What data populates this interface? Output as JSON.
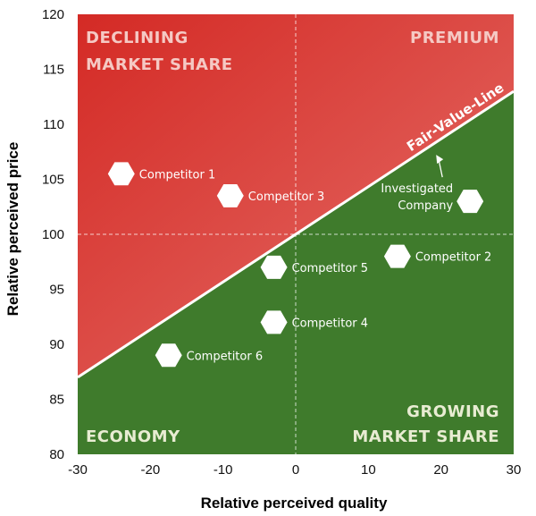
{
  "chart_data": {
    "type": "scatter",
    "xlabel": "Relative perceived quality",
    "ylabel": "Relative perceived price",
    "xlim": [
      -30,
      30
    ],
    "ylim": [
      80,
      120
    ],
    "xticks": [
      -30,
      -20,
      -10,
      0,
      10,
      20,
      30
    ],
    "yticks": [
      80,
      85,
      90,
      95,
      100,
      105,
      110,
      115,
      120
    ],
    "reference_lines": {
      "x": 0,
      "y": 100,
      "style": "dashed"
    },
    "fair_value_line": {
      "label": "Fair-Value-Line",
      "from": [
        -30,
        87
      ],
      "to": [
        30,
        113
      ]
    },
    "quadrants": {
      "top_left": [
        "DECLINING",
        "MARKET SHARE"
      ],
      "top_right": [
        "PREMIUM"
      ],
      "bottom_left": [
        "ECONOMY"
      ],
      "bottom_right": [
        "GROWING",
        "MARKET SHARE"
      ]
    },
    "points": [
      {
        "label": "Competitor 1",
        "x": -24,
        "y": 105.5
      },
      {
        "label": "Competitor 3",
        "x": -9,
        "y": 103.5
      },
      {
        "label": "Investigated Company",
        "label_lines": [
          "Investigated",
          "Company"
        ],
        "x": 24,
        "y": 103
      },
      {
        "label": "Competitor 2",
        "x": 14,
        "y": 98
      },
      {
        "label": "Competitor 5",
        "x": -3,
        "y": 97
      },
      {
        "label": "Competitor 4",
        "x": -3,
        "y": 92
      },
      {
        "label": "Competitor 6",
        "x": -17.5,
        "y": 89
      }
    ],
    "colors": {
      "red_dark": "#d42a25",
      "red_light": "#e5706a",
      "green": "#3f7b2c",
      "quad_red_text": "#f5c9c4",
      "quad_green_text": "#e8ecd2"
    }
  }
}
